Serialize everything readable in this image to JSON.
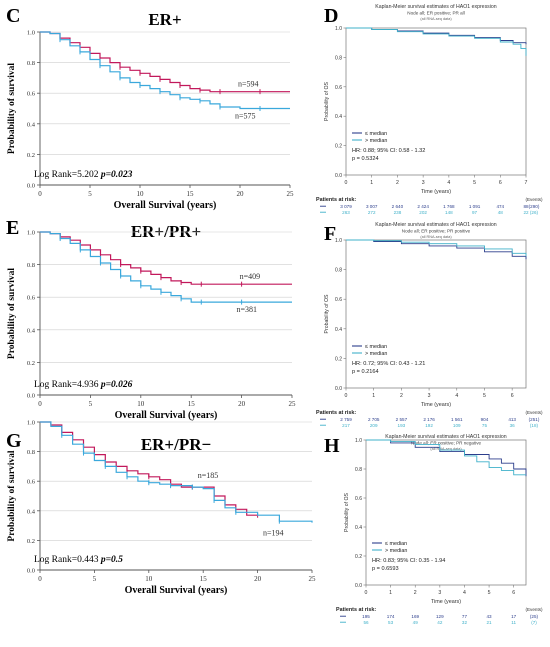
{
  "colors": {
    "red": "#c2185b",
    "blue": "#3aa8dc",
    "navy": "#2c3e8c",
    "teal": "#3fb0c9",
    "grid": "#cfcfcf",
    "axis": "#555555"
  },
  "left_panels": [
    {
      "letter": "C",
      "title": "ER+",
      "xlabel": "Overall Survival (years)",
      "ylabel": "Probability of survival",
      "xticks": [
        0,
        5,
        10,
        15,
        20,
        25
      ],
      "yticks": [
        0.0,
        0.2,
        0.4,
        0.6,
        0.8,
        1.0
      ],
      "stat_prefix": "Log Rank=5.202 ",
      "stat_p": "p=0.023",
      "red_label": "n=594",
      "blue_label": "n=575"
    },
    {
      "letter": "E",
      "title": "ER+/PR+",
      "xlabel": "Overall Survival (years)",
      "ylabel": "Probability of survival",
      "xticks": [
        0,
        5,
        10,
        15,
        20,
        25
      ],
      "yticks": [
        0.0,
        0.2,
        0.4,
        0.6,
        0.8,
        1.0
      ],
      "stat_prefix": "Log Rank=4.936 ",
      "stat_p": "p=0.026",
      "red_label": "n=409",
      "blue_label": "n=381"
    },
    {
      "letter": "G",
      "title": "ER+/PR−",
      "xlabel": "Overall Survival (years)",
      "ylabel": "Probability of survival",
      "xticks": [
        0,
        5,
        10,
        15,
        20,
        25
      ],
      "yticks": [
        0.0,
        0.2,
        0.4,
        0.6,
        0.8,
        1.0
      ],
      "stat_prefix": "Log Rank=0.443 ",
      "stat_p": "p=0.5",
      "red_label": "n=185",
      "blue_label": "n=194"
    }
  ],
  "right_panels": [
    {
      "letter": "D",
      "title": "Kaplan-Meier survival estimates of HAO1 expression",
      "subtitle": "Node all; ER positive; PR all",
      "note": "(all RNA-seq data)",
      "ylabel": "Probability of OS",
      "xlabel": "Time (years)",
      "xticks": [
        "0",
        "1",
        "2",
        "3",
        "4",
        "5",
        "6",
        "7"
      ],
      "yticks": [
        "0.0",
        "0.2",
        "0.4",
        "0.6",
        "0.8",
        "1.0"
      ],
      "legend": [
        "≤ median",
        "> median"
      ],
      "hr": "HR: 0.88; 95% CI: 0.58 - 1.32",
      "p": "p = 0.5324",
      "risk_title": "Patients at risk:",
      "events_title": "(Events)",
      "risk_rows": [
        [
          "3 079",
          "3 007",
          "2 640",
          "2 424",
          "1 768",
          "1 091",
          "474",
          "88",
          "(290)"
        ],
        [
          "263",
          "272",
          "238",
          "202",
          "148",
          "97",
          "48",
          "22",
          "(26)"
        ]
      ]
    },
    {
      "letter": "F",
      "title": "Kaplan-Meier survival estimates of HAO1 expression",
      "subtitle": "Node all; ER positive; PR positive",
      "note": "(all RNA-seq data)",
      "ylabel": "Probability of OS",
      "xlabel": "Time (years)",
      "xticks": [
        "0",
        "1",
        "2",
        "3",
        "4",
        "5",
        "6"
      ],
      "yticks": [
        "0.0",
        "0.2",
        "0.4",
        "0.6",
        "0.8",
        "1.0"
      ],
      "legend": [
        "≤ median",
        "> median"
      ],
      "hr": "HR: 0.72; 95% CI: 0.43 - 1.21",
      "p": "p = 0.2164",
      "risk_title": "Patients at risk:",
      "events_title": "(Events)",
      "risk_rows": [
        [
          "2 759",
          "2 705",
          "2 557",
          "2 176",
          "1 561",
          "904",
          "413",
          "(251)"
        ],
        [
          "217",
          "209",
          "193",
          "192",
          "109",
          "75",
          "36",
          "(18)"
        ]
      ]
    },
    {
      "letter": "H",
      "title": "Kaplan-Meier survival estimates of HAO1 expression",
      "subtitle": "Node all; ER positive; PR negative",
      "note": "(all RNA-seq data)",
      "ylabel": "Probability of OS",
      "xlabel": "Time (years)",
      "xticks": [
        "0",
        "1",
        "2",
        "3",
        "4",
        "5",
        "6"
      ],
      "yticks": [
        "0.0",
        "0.2",
        "0.4",
        "0.6",
        "0.8",
        "1.0"
      ],
      "legend": [
        "≤ median",
        "> median"
      ],
      "hr": "HR: 0.83; 95% CI: 0.35 - 1.94",
      "p": "p = 0.6593",
      "risk_title": "Patients at risk:",
      "events_title": "(Events)",
      "risk_rows": [
        [
          "195",
          "174",
          "169",
          "129",
          "77",
          "43",
          "17",
          "(25)"
        ],
        [
          "56",
          "53",
          "49",
          "42",
          "32",
          "21",
          "11",
          "(7)"
        ]
      ]
    }
  ],
  "chart_data": [
    {
      "type": "line",
      "panel": "C",
      "title": "ER+",
      "xlabel": "Overall Survival (years)",
      "ylabel": "Probability of survival",
      "xlim": [
        0,
        25
      ],
      "ylim": [
        0,
        1
      ],
      "grid": true,
      "series": [
        {
          "name": "n=594",
          "x": [
            0,
            1,
            2,
            3,
            4,
            5,
            6,
            7,
            8,
            9,
            10,
            11,
            12,
            13,
            14,
            15,
            16,
            17,
            18,
            20,
            22,
            25
          ],
          "y": [
            1.0,
            0.99,
            0.96,
            0.93,
            0.9,
            0.86,
            0.83,
            0.8,
            0.77,
            0.75,
            0.73,
            0.71,
            0.69,
            0.67,
            0.65,
            0.63,
            0.62,
            0.61,
            0.61,
            0.61,
            0.61,
            0.61
          ]
        },
        {
          "name": "n=575",
          "x": [
            0,
            1,
            2,
            3,
            4,
            5,
            6,
            7,
            8,
            9,
            10,
            11,
            12,
            13,
            14,
            15,
            16,
            17,
            18,
            20,
            22,
            25
          ],
          "y": [
            1.0,
            0.99,
            0.95,
            0.91,
            0.87,
            0.82,
            0.78,
            0.74,
            0.7,
            0.67,
            0.65,
            0.63,
            0.61,
            0.59,
            0.57,
            0.56,
            0.55,
            0.53,
            0.51,
            0.5,
            0.5,
            0.5
          ]
        }
      ]
    },
    {
      "type": "line",
      "panel": "E",
      "title": "ER+/PR+",
      "xlabel": "Overall Survival (years)",
      "ylabel": "Probability of survival",
      "xlim": [
        0,
        25
      ],
      "ylim": [
        0,
        1
      ],
      "grid": true,
      "series": [
        {
          "name": "n=409",
          "x": [
            0,
            1,
            2,
            3,
            4,
            5,
            6,
            7,
            8,
            9,
            10,
            11,
            12,
            13,
            14,
            15,
            16,
            18,
            20,
            25
          ],
          "y": [
            1.0,
            0.99,
            0.97,
            0.95,
            0.92,
            0.89,
            0.86,
            0.83,
            0.8,
            0.78,
            0.76,
            0.74,
            0.72,
            0.7,
            0.69,
            0.68,
            0.68,
            0.68,
            0.68,
            0.68
          ]
        },
        {
          "name": "n=381",
          "x": [
            0,
            1,
            2,
            3,
            4,
            5,
            6,
            7,
            8,
            9,
            10,
            11,
            12,
            13,
            14,
            15,
            16,
            18,
            20,
            25
          ],
          "y": [
            1.0,
            0.99,
            0.96,
            0.93,
            0.89,
            0.85,
            0.81,
            0.77,
            0.73,
            0.7,
            0.67,
            0.65,
            0.63,
            0.61,
            0.59,
            0.57,
            0.57,
            0.57,
            0.57,
            0.57
          ]
        }
      ]
    },
    {
      "type": "line",
      "panel": "G",
      "title": "ER+/PR−",
      "xlabel": "Overall Survival (years)",
      "ylabel": "Probability of survival",
      "xlim": [
        0,
        25
      ],
      "ylim": [
        0,
        1
      ],
      "grid": true,
      "series": [
        {
          "name": "n=185",
          "x": [
            0,
            1,
            2,
            3,
            4,
            5,
            6,
            7,
            8,
            9,
            10,
            11,
            12,
            13,
            14,
            15,
            16,
            17,
            18,
            19,
            20
          ],
          "y": [
            1.0,
            0.98,
            0.93,
            0.88,
            0.83,
            0.78,
            0.73,
            0.7,
            0.67,
            0.65,
            0.63,
            0.61,
            0.58,
            0.56,
            0.56,
            0.56,
            0.5,
            0.44,
            0.41,
            0.37,
            0.37
          ]
        },
        {
          "name": "n=194",
          "x": [
            0,
            1,
            2,
            3,
            4,
            5,
            6,
            7,
            8,
            9,
            10,
            11,
            12,
            13,
            14,
            15,
            16,
            17,
            18,
            20,
            22,
            25
          ],
          "y": [
            1.0,
            0.97,
            0.91,
            0.85,
            0.79,
            0.74,
            0.7,
            0.66,
            0.63,
            0.6,
            0.59,
            0.58,
            0.57,
            0.57,
            0.56,
            0.55,
            0.47,
            0.42,
            0.39,
            0.37,
            0.33,
            0.32
          ]
        }
      ]
    },
    {
      "type": "line",
      "panel": "D",
      "title": "Kaplan-Meier survival estimates of HAO1 expression",
      "xlabel": "Time (years)",
      "ylabel": "Probability of OS",
      "xlim": [
        0,
        7
      ],
      "ylim": [
        0,
        1
      ],
      "grid": false,
      "series": [
        {
          "name": "≤ median",
          "x": [
            0,
            1,
            2,
            3,
            4,
            5,
            6,
            6.5,
            7
          ],
          "y": [
            1.0,
            0.99,
            0.98,
            0.965,
            0.95,
            0.935,
            0.915,
            0.9,
            0.89
          ]
        },
        {
          "name": "> median",
          "x": [
            0,
            1,
            2,
            3,
            4,
            5,
            6,
            6.5,
            6.8,
            7
          ],
          "y": [
            1.0,
            0.99,
            0.975,
            0.96,
            0.945,
            0.93,
            0.905,
            0.89,
            0.86,
            0.81
          ]
        }
      ]
    },
    {
      "type": "line",
      "panel": "F",
      "title": "Kaplan-Meier survival estimates of HAO1 expression",
      "xlabel": "Time (years)",
      "ylabel": "Probability of OS",
      "xlim": [
        0,
        6.5
      ],
      "ylim": [
        0,
        1
      ],
      "grid": false,
      "series": [
        {
          "name": "≤ median",
          "x": [
            0,
            1,
            2,
            3,
            4,
            5,
            6,
            6.5
          ],
          "y": [
            1.0,
            0.99,
            0.975,
            0.96,
            0.945,
            0.92,
            0.89,
            0.87
          ]
        },
        {
          "name": "> median",
          "x": [
            0,
            1,
            2,
            3,
            4,
            5,
            6,
            6.5
          ],
          "y": [
            1.0,
            0.995,
            0.985,
            0.975,
            0.96,
            0.94,
            0.91,
            0.89
          ]
        }
      ]
    },
    {
      "type": "line",
      "panel": "H",
      "title": "Kaplan-Meier survival estimates of HAO1 expression",
      "xlabel": "Time (years)",
      "ylabel": "Probability of OS",
      "xlim": [
        0,
        6.5
      ],
      "ylim": [
        0,
        1
      ],
      "grid": false,
      "series": [
        {
          "name": "≤ median",
          "x": [
            0,
            1,
            2,
            3,
            4,
            5,
            5.5,
            6,
            6.5
          ],
          "y": [
            1.0,
            0.98,
            0.95,
            0.92,
            0.9,
            0.87,
            0.84,
            0.8,
            0.75
          ]
        },
        {
          "name": "> median",
          "x": [
            0,
            1,
            2,
            3,
            4,
            4.5,
            5,
            5.5,
            6,
            6.5
          ],
          "y": [
            1.0,
            0.99,
            0.97,
            0.93,
            0.89,
            0.85,
            0.81,
            0.79,
            0.76,
            0.76
          ]
        }
      ]
    }
  ]
}
